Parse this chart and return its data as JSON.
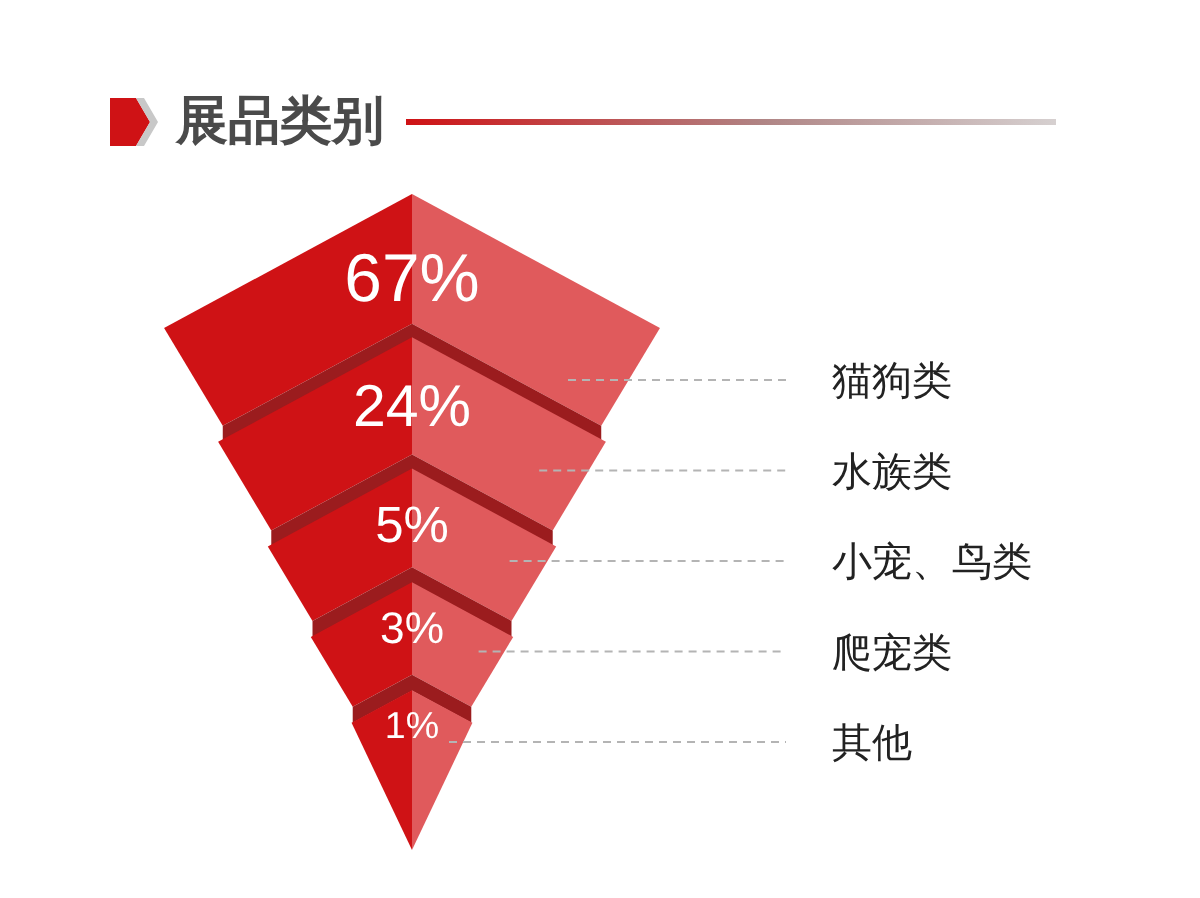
{
  "chart_data": {
    "type": "other",
    "title": "展品类别",
    "categories": [
      "猫狗类",
      "水族类",
      "小宠、鸟类",
      "爬宠类",
      "其他"
    ],
    "values": [
      67,
      24,
      5,
      3,
      1
    ],
    "value_labels": [
      "67%",
      "24%",
      "5%",
      "3%",
      "1%"
    ],
    "color": "#e05a5c"
  }
}
